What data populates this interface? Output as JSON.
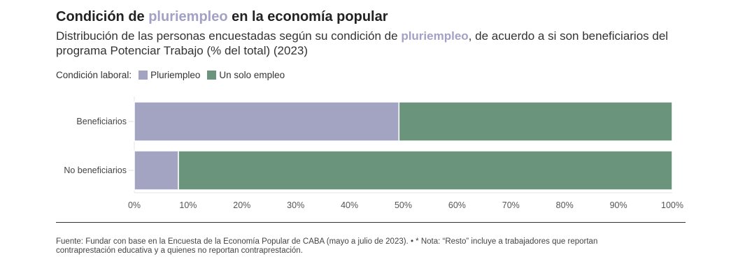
{
  "title": {
    "pre": "Condición de ",
    "hl": "pluriempleo",
    "post": " en la economía popular"
  },
  "subtitle": {
    "pre": "Distribución de las personas encuestadas según su condición de ",
    "hl": "pluriempleo",
    "post": ", de acuerdo a si son beneficiarios del programa Potenciar Trabajo (% del total) (2023)"
  },
  "legend": {
    "label": "Condición laboral:"
  },
  "footnote": "Fuente: Fundar con base en la Encuesta de la Economía Popular de CABA (mayo a julio de 2023). • * Nota: “Resto” incluye a trabajadores que reportan contraprestación educativa y a quienes no reportan contraprestación.",
  "chart_data": {
    "type": "bar",
    "orientation": "horizontal",
    "stacked": true,
    "categories": [
      "Beneficiarios",
      "No beneficiarios"
    ],
    "series": [
      {
        "name": "Pluriempleo",
        "color": "#a3a3c2",
        "values": [
          49.2,
          8.2
        ]
      },
      {
        "name": "Un solo empleo",
        "color": "#6a947b",
        "values": [
          50.8,
          91.8
        ]
      }
    ],
    "xlim": [
      0,
      100
    ],
    "xticks": [
      "0%",
      "10%",
      "20%",
      "30%",
      "40%",
      "50%",
      "60%",
      "70%",
      "80%",
      "90%",
      "100%"
    ]
  }
}
